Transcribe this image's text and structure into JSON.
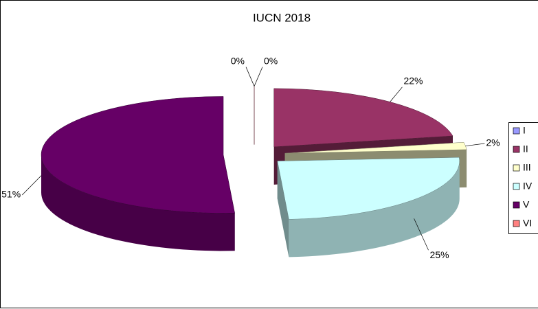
{
  "chart_data": {
    "type": "pie3d",
    "title": "IUCN 2018",
    "categories": [
      "I",
      "II",
      "III",
      "IV",
      "V",
      "VI"
    ],
    "values": [
      0,
      22,
      2,
      25,
      51,
      0
    ],
    "value_labels": [
      "0%",
      "22%",
      "2%",
      "25%",
      "51%",
      "0%"
    ],
    "colors": [
      "#9999ff",
      "#993366",
      "#ffffcc",
      "#ccffff",
      "#660066",
      "#ff8080"
    ],
    "legend": "right"
  }
}
